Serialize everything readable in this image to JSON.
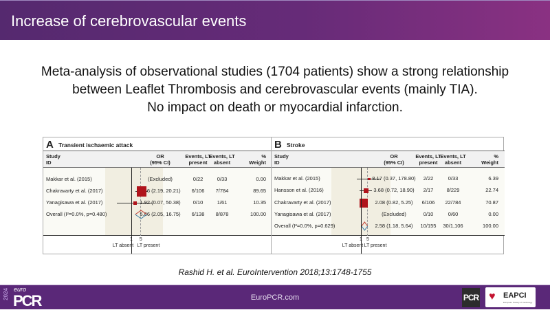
{
  "header": {
    "title": "Increase of cerebrovascular events"
  },
  "subtitle": [
    "Meta-analysis of observational studies (1704 patients) show a strong relationship",
    "between Leaflet Thrombosis and cerebrovascular events (mainly TIA).",
    "No impact on death or myocardial infarction."
  ],
  "columns": {
    "study": "Study",
    "id": "ID",
    "or": "OR",
    "ci": "(95% CI)",
    "ev_p1": "Events, LT",
    "ev_p2": "present",
    "ev_a1": "Events, LT",
    "ev_a2": "absent",
    "w1": "%",
    "w2": "Weight"
  },
  "axis": {
    "one": "1",
    "five": "5",
    "absent": "LT absent",
    "present": "LT present"
  },
  "panels": [
    {
      "letter": "A",
      "title": "Transient ischaemic attack",
      "rows": [
        {
          "study": "Makkar et al. (2015)",
          "or_text": "(Excluded)",
          "present": "0/22",
          "absent": "0/33",
          "weight": "0.00",
          "or": null,
          "lo": null,
          "hi": null,
          "w": 0
        },
        {
          "study": "Chakravarty et al. (2017)",
          "or_text": "6.66 (2.19, 20.21)",
          "present": "6/106",
          "absent": "7/784",
          "weight": "89.65",
          "or": 6.66,
          "lo": 2.19,
          "hi": 20.21,
          "w": 89.65
        },
        {
          "study": "Yanagisawa et al. (2017)",
          "or_text": "1.92 (0.07, 50.38)",
          "present": "0/10",
          "absent": "1/61",
          "weight": "10.35",
          "or": 1.92,
          "lo": 0.07,
          "hi": 50.38,
          "w": 10.35
        },
        {
          "study": "Overall (I²=0.0%, p=0.480)",
          "or_text": "5.86 (2.05, 16.75)",
          "present": "6/138",
          "absent": "8/878",
          "weight": "100.00",
          "or": 5.86,
          "lo": 2.05,
          "hi": 16.75,
          "overall": true
        }
      ]
    },
    {
      "letter": "B",
      "title": "Stroke",
      "rows": [
        {
          "study": "Makkar et al. (2015)",
          "or_text": "8.17 (0.37, 178.80)",
          "present": "2/22",
          "absent": "0/33",
          "weight": "6.39",
          "or": 8.17,
          "lo": 0.37,
          "hi": 178.8,
          "w": 6.39
        },
        {
          "study": "Hansson et al. (2016)",
          "or_text": "3.68 (0.72, 18.90)",
          "present": "2/17",
          "absent": "8/229",
          "weight": "22.74",
          "or": 3.68,
          "lo": 0.72,
          "hi": 18.9,
          "w": 22.74
        },
        {
          "study": "Chakravarty et al. (2017)",
          "or_text": "2.08 (0.82, 5.25)",
          "present": "6/106",
          "absent": "22/784",
          "weight": "70.87",
          "or": 2.08,
          "lo": 0.82,
          "hi": 5.25,
          "w": 70.87
        },
        {
          "study": "Yanagisawa et al. (2017)",
          "or_text": "(Excluded)",
          "present": "0/10",
          "absent": "0/60",
          "weight": "0.00",
          "or": null,
          "lo": null,
          "hi": null,
          "w": 0
        },
        {
          "study": "Overall (I²=0.0%, p=0.629)",
          "or_text": "2.58 (1.18, 5.64)",
          "present": "10/155",
          "absent": "30/1,106",
          "weight": "100.00",
          "or": 2.58,
          "lo": 1.18,
          "hi": 5.64,
          "overall": true
        }
      ]
    }
  ],
  "citation": "Rashid H. et al. EuroIntervention 2018;13:1748-1755",
  "footer": {
    "site": "EuroPCR.com",
    "year": "2024",
    "euro": "euro",
    "pcr": "PCR",
    "pcr_badge": "PCR",
    "eapci": "EAPCI",
    "eapci_sub": "European Society of Cardiology"
  },
  "colors": {
    "marker": "#b0141c",
    "diamond_a": "#c0392b",
    "diamond_b": "#3a7ca5"
  }
}
